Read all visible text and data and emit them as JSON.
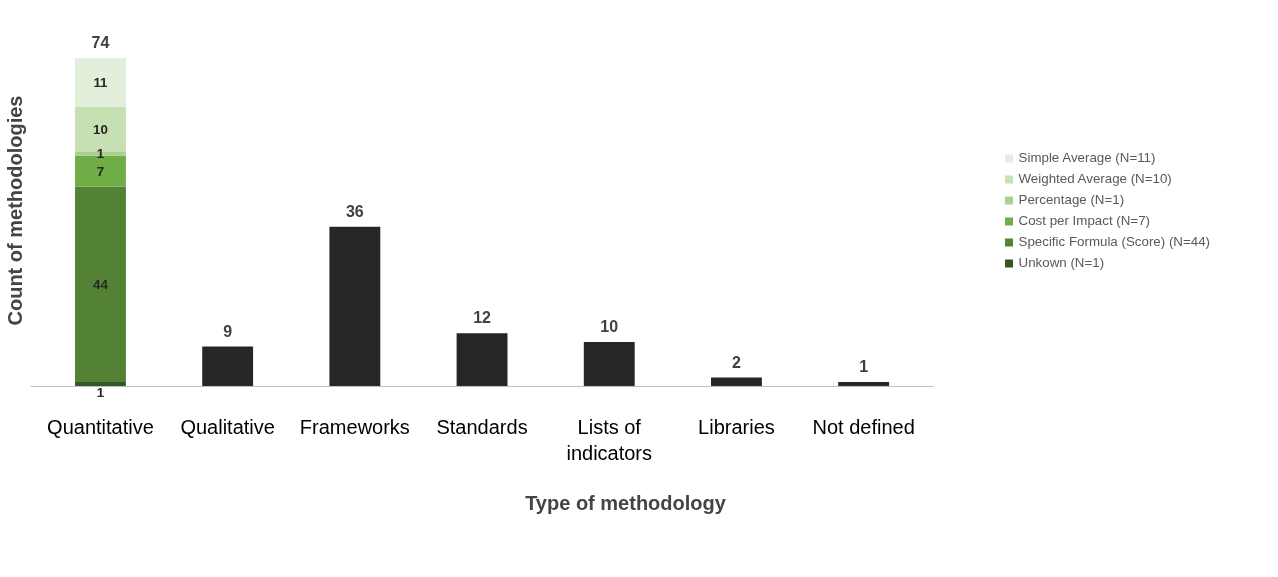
{
  "chart_data": {
    "type": "bar",
    "stacked": true,
    "xlabel": "Type of methodology",
    "ylabel": "Count of methodologies",
    "categories": [
      "Quantitative",
      "Qualitative",
      "Frameworks",
      "Standards",
      "Lists of indicators",
      "Libraries",
      "Not defined"
    ],
    "series": [
      {
        "name": "Unkown (N=1)",
        "color": "#375623",
        "values": [
          1,
          null,
          null,
          null,
          null,
          null,
          null
        ],
        "value_labels": [
          "1",
          null,
          null,
          null,
          null,
          null,
          null
        ]
      },
      {
        "name": "Specific Formula (Score) (N=44)",
        "color": "#548235",
        "values": [
          44,
          null,
          null,
          null,
          null,
          null,
          null
        ],
        "value_labels": [
          "44",
          null,
          null,
          null,
          null,
          null,
          null
        ]
      },
      {
        "name": "Cost per Impact (N=7)",
        "color": "#70ad47",
        "values": [
          7,
          null,
          null,
          null,
          null,
          null,
          null
        ],
        "value_labels": [
          "7",
          null,
          null,
          null,
          null,
          null,
          null
        ]
      },
      {
        "name": "Percentage (N=1)",
        "color": "#a9d18e",
        "values": [
          1,
          null,
          null,
          null,
          null,
          null,
          null
        ],
        "value_labels": [
          "1",
          null,
          null,
          null,
          null,
          null,
          null
        ]
      },
      {
        "name": "Weighted Average (N=10)",
        "color": "#c6e0b4",
        "values": [
          10,
          null,
          null,
          null,
          null,
          null,
          null
        ],
        "value_labels": [
          "10",
          null,
          null,
          null,
          null,
          null,
          null
        ]
      },
      {
        "name": "Simple Average (N=11)",
        "color": "#e2efda",
        "values": [
          11,
          null,
          null,
          null,
          null,
          null,
          null
        ],
        "value_labels": [
          "11",
          null,
          null,
          null,
          null,
          null,
          null
        ]
      },
      {
        "color": "#262626",
        "values": [
          null,
          9,
          36,
          12,
          10,
          2,
          1
        ]
      }
    ],
    "totals": [
      "74",
      "9",
      "36",
      "12",
      "10",
      "2",
      "1"
    ],
    "grid": false,
    "legend": "right"
  }
}
